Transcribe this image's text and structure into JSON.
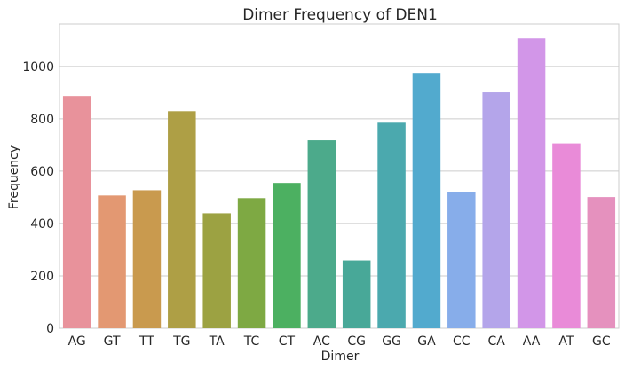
{
  "chart_data": {
    "type": "bar",
    "title": "Dimer Frequency of DEN1",
    "xlabel": "Dimer",
    "ylabel": "Frequency",
    "categories": [
      "AG",
      "GT",
      "TT",
      "TG",
      "TA",
      "TC",
      "CT",
      "AC",
      "CG",
      "GG",
      "GA",
      "CC",
      "CA",
      "AA",
      "AT",
      "GC"
    ],
    "values": [
      887,
      507,
      527,
      829,
      439,
      497,
      555,
      718,
      259,
      785,
      975,
      520,
      901,
      1107,
      706,
      501
    ],
    "ylim": [
      0,
      1162
    ],
    "yticks": [
      0,
      200,
      400,
      600,
      800,
      1000
    ],
    "grid": true,
    "legend": "none",
    "colors": [
      "#e8929b",
      "#e39872",
      "#c99a4e",
      "#ae9f45",
      "#9ca242",
      "#7ea943",
      "#4cb061",
      "#4caa8b",
      "#48a898",
      "#4ba9ae",
      "#52aace",
      "#87adea",
      "#b4a5ea",
      "#d296e8",
      "#e98bd8",
      "#e591be"
    ]
  }
}
